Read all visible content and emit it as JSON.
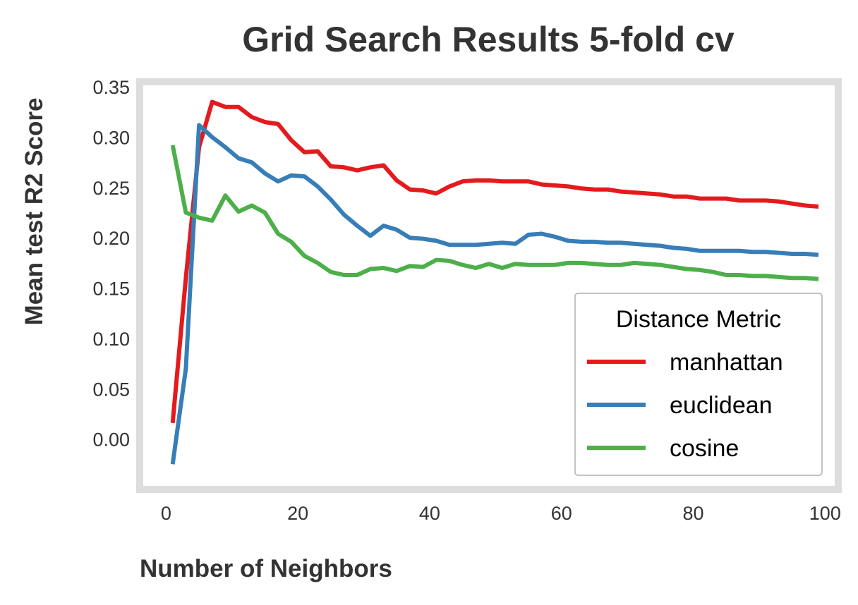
{
  "chart_data": {
    "type": "line",
    "title": "Grid Search Results 5-fold cv",
    "xlabel": "Number of Neighbors",
    "ylabel": "Mean test R2 Score",
    "xlim": [
      -4,
      102
    ],
    "ylim": [
      -0.05,
      0.355
    ],
    "xticks": [
      0,
      20,
      40,
      60,
      80,
      100
    ],
    "yticks": [
      0.0,
      0.05,
      0.1,
      0.15,
      0.2,
      0.25,
      0.3,
      0.35
    ],
    "xtick_labels": [
      "0",
      "20",
      "40",
      "60",
      "80",
      "100"
    ],
    "ytick_labels": [
      "0.00",
      "0.05",
      "0.10",
      "0.15",
      "0.20",
      "0.25",
      "0.30",
      "0.35"
    ],
    "grid": false,
    "legend": {
      "title": "Distance Metric",
      "position": "lower-right"
    },
    "x": [
      1,
      3,
      5,
      7,
      9,
      11,
      13,
      15,
      17,
      19,
      21,
      23,
      25,
      27,
      29,
      31,
      33,
      35,
      37,
      39,
      41,
      43,
      45,
      47,
      49,
      51,
      53,
      55,
      57,
      59,
      61,
      63,
      65,
      67,
      69,
      71,
      73,
      75,
      77,
      79,
      81,
      83,
      85,
      87,
      89,
      91,
      93,
      95,
      97,
      99
    ],
    "series": [
      {
        "name": "manhattan",
        "color": "#e41a1c",
        "values": [
          0.016,
          0.16,
          0.29,
          0.335,
          0.33,
          0.33,
          0.32,
          0.315,
          0.313,
          0.297,
          0.285,
          0.286,
          0.271,
          0.27,
          0.267,
          0.27,
          0.272,
          0.257,
          0.248,
          0.247,
          0.244,
          0.251,
          0.256,
          0.257,
          0.257,
          0.256,
          0.256,
          0.256,
          0.253,
          0.252,
          0.251,
          0.249,
          0.248,
          0.248,
          0.246,
          0.245,
          0.244,
          0.243,
          0.241,
          0.241,
          0.239,
          0.239,
          0.239,
          0.237,
          0.237,
          0.237,
          0.236,
          0.234,
          0.232,
          0.231
        ]
      },
      {
        "name": "euclidean",
        "color": "#377eb8",
        "values": [
          -0.025,
          0.07,
          0.312,
          0.3,
          0.29,
          0.279,
          0.275,
          0.264,
          0.256,
          0.262,
          0.261,
          0.251,
          0.238,
          0.223,
          0.212,
          0.202,
          0.212,
          0.208,
          0.2,
          0.199,
          0.197,
          0.193,
          0.193,
          0.193,
          0.194,
          0.195,
          0.194,
          0.203,
          0.204,
          0.201,
          0.197,
          0.196,
          0.196,
          0.195,
          0.195,
          0.194,
          0.193,
          0.192,
          0.19,
          0.189,
          0.187,
          0.187,
          0.187,
          0.187,
          0.186,
          0.186,
          0.185,
          0.184,
          0.184,
          0.183
        ]
      },
      {
        "name": "cosine",
        "color": "#4daf4a",
        "values": [
          0.292,
          0.225,
          0.22,
          0.217,
          0.242,
          0.226,
          0.232,
          0.225,
          0.204,
          0.196,
          0.182,
          0.175,
          0.166,
          0.163,
          0.163,
          0.169,
          0.17,
          0.167,
          0.172,
          0.171,
          0.178,
          0.177,
          0.173,
          0.17,
          0.174,
          0.17,
          0.174,
          0.173,
          0.173,
          0.173,
          0.175,
          0.175,
          0.174,
          0.173,
          0.173,
          0.175,
          0.174,
          0.173,
          0.171,
          0.169,
          0.168,
          0.166,
          0.163,
          0.163,
          0.162,
          0.162,
          0.161,
          0.16,
          0.16,
          0.159
        ]
      }
    ]
  }
}
